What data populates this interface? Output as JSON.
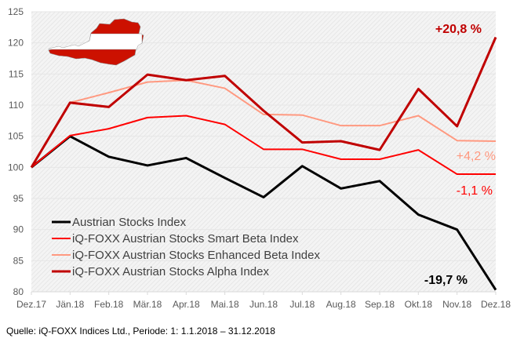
{
  "chart_data": {
    "type": "line",
    "title": "",
    "xlabel": "",
    "ylabel": "",
    "ylim": [
      80,
      125
    ],
    "yticks": [
      80,
      85,
      90,
      95,
      100,
      105,
      110,
      115,
      120,
      125
    ],
    "grid": true,
    "legend_position": "bottom-left",
    "categories": [
      "Dez.17",
      "Jän.18",
      "Feb.18",
      "Mär.18",
      "Apr.18",
      "Mai.18",
      "Jun.18",
      "Jul.18",
      "Aug.18",
      "Sep.18",
      "Okt.18",
      "Nov.18",
      "Dez.18"
    ],
    "series": [
      {
        "name": "Austrian Stocks Index",
        "color": "#000000",
        "end_label": "-19,7 %",
        "values": [
          100,
          105.0,
          101.7,
          100.3,
          101.5,
          98.3,
          95.2,
          100.2,
          96.6,
          97.8,
          92.4,
          90.0,
          80.3
        ]
      },
      {
        "name": "iQ-FOXX Austrian Stocks Smart Beta Index",
        "color": "#ff0000",
        "end_label": "-1,1 %",
        "values": [
          100,
          105.1,
          106.2,
          108.0,
          108.3,
          106.9,
          102.9,
          102.9,
          101.3,
          101.3,
          102.8,
          98.9,
          98.9
        ]
      },
      {
        "name": "iQ-FOXX Austrian Stocks Enhanced Beta Index",
        "color": "#ff9980",
        "end_label": "+4,2 %",
        "values": [
          100,
          110.4,
          112.0,
          113.7,
          114.0,
          112.7,
          108.5,
          108.4,
          106.7,
          106.7,
          108.3,
          104.3,
          104.2
        ]
      },
      {
        "name": "iQ-FOXX Austrian Stocks Alpha Index",
        "color": "#c00000",
        "end_label": "+20,8 %",
        "values": [
          100,
          110.4,
          109.7,
          114.9,
          114.0,
          114.7,
          109.1,
          104.0,
          104.2,
          102.8,
          112.6,
          106.6,
          120.9
        ]
      }
    ]
  },
  "source_note": "Quelle: iQ-FOXX Indices Ltd., Periode: 1: 1.1.2018  – 31.12.2018",
  "logo": {
    "name": "austria-flag-map-icon",
    "colors": [
      "#cc1100",
      "#ffffff"
    ]
  }
}
